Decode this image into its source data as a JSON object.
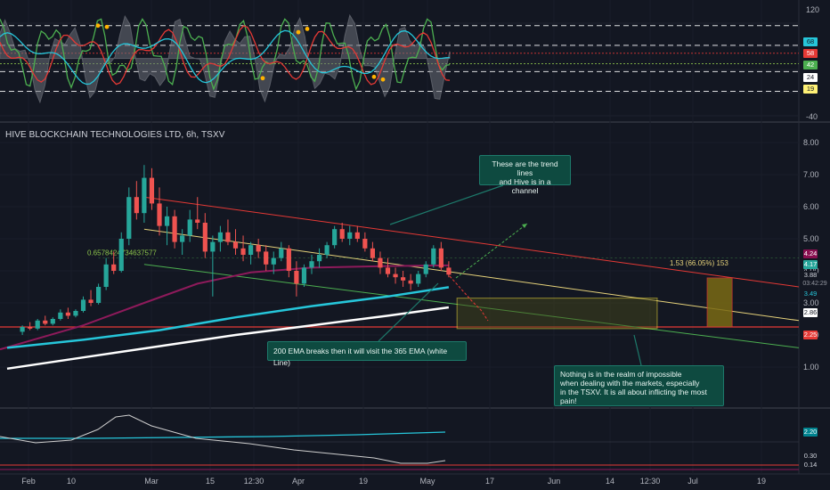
{
  "title": "HIVE BLOCKCHAIN TECHNOLOGIES LTD, 6h, TSXV",
  "price_axis": {
    "ticks": [
      "8.00",
      "7.00",
      "6.00",
      "5.00",
      "4.00",
      "3.00",
      "2.00",
      "1.00"
    ],
    "tags": [
      {
        "text": "4.24",
        "bg": "#880e4f",
        "fg": "#ffffff"
      },
      {
        "text": "4.17",
        "bg": "#26a69a",
        "fg": "#ffffff"
      },
      {
        "text": "3.88",
        "bg": "#131722",
        "fg": "#d1d4dc"
      },
      {
        "text": "03:42:29",
        "bg": "#131722",
        "fg": "#9598a1"
      },
      {
        "text": "3.49",
        "bg": "#131722",
        "fg": "#26c6da"
      },
      {
        "text": "2.86",
        "bg": "#ffffff",
        "fg": "#131722"
      },
      {
        "text": "2.25",
        "bg": "#e53935",
        "fg": "#ffffff"
      }
    ]
  },
  "rsi_axis": {
    "ticks": [
      "120",
      "-40"
    ],
    "tags": [
      {
        "text": "68",
        "bg": "#26c6da",
        "fg": "#131722"
      },
      {
        "text": "58",
        "bg": "#e53935",
        "fg": "#ffffff"
      },
      {
        "text": "42",
        "bg": "#4caf50",
        "fg": "#ffffff"
      },
      {
        "text": "24",
        "bg": "#ffffff",
        "fg": "#131722"
      },
      {
        "text": "19",
        "bg": "#fff176",
        "fg": "#131722"
      }
    ]
  },
  "macd_axis": {
    "tags": [
      {
        "text": "2.20",
        "bg": "#00838f",
        "fg": "#ffffff"
      },
      {
        "text": "0.30",
        "bg": "#131722",
        "fg": "#d1d4dc"
      },
      {
        "text": "0.14",
        "bg": "#131722",
        "fg": "#d1d4dc"
      }
    ]
  },
  "time_axis": [
    "Feb",
    "10",
    "Mar",
    "15",
    "12:30",
    "Apr",
    "19",
    "May",
    "17",
    "Jun",
    "14",
    "12:30",
    "Jul",
    "19"
  ],
  "annotations": {
    "fib_label": "0.6578424734637577",
    "projection_label": "1.53 (66.05%) 153",
    "note_trend": "These are the trend lines\nand Hive is in a channel",
    "note_ema": "200 EMA breaks then it will visit the 365 EMA (white Line)",
    "note_pain": "Nothing is in the realm of impossible\nwhen dealing with the markets, especially\nin the TSXV. It is all about inflicting the most pain!"
  },
  "colors": {
    "background": "#131722",
    "up_candle": "#26a69a",
    "down_candle": "#ef5350",
    "ema_cyan": "#26c6da",
    "ema_white": "#ffffff",
    "ema_purple": "#8e1a5b",
    "trend_red": "#e53935",
    "trend_yellow": "#e6d27a",
    "trend_green": "#4caf50"
  },
  "chart_data": {
    "type": "candlestick",
    "ylim": [
      0.5,
      8.0
    ],
    "x_range": [
      0,
      100
    ],
    "candles": [
      [
        2,
        2.1,
        2.3,
        2.0,
        2.25
      ],
      [
        3,
        2.25,
        2.4,
        2.15,
        2.2
      ],
      [
        4,
        2.2,
        2.5,
        2.15,
        2.45
      ],
      [
        5,
        2.45,
        2.6,
        2.3,
        2.35
      ],
      [
        6,
        2.35,
        2.55,
        2.3,
        2.5
      ],
      [
        7,
        2.5,
        2.8,
        2.45,
        2.7
      ],
      [
        8,
        2.7,
        2.85,
        2.5,
        2.6
      ],
      [
        9,
        2.6,
        2.8,
        2.55,
        2.75
      ],
      [
        10,
        2.75,
        3.2,
        2.7,
        3.1
      ],
      [
        11,
        3.1,
        3.4,
        2.9,
        3.0
      ],
      [
        12,
        3.0,
        3.6,
        2.95,
        3.5
      ],
      [
        13,
        3.5,
        4.4,
        3.4,
        4.2
      ],
      [
        14,
        4.2,
        4.6,
        3.9,
        4.0
      ],
      [
        15,
        4.0,
        5.2,
        3.95,
        5.0
      ],
      [
        16,
        5.0,
        6.6,
        4.8,
        6.3
      ],
      [
        17,
        6.3,
        6.8,
        5.6,
        5.8
      ],
      [
        18,
        5.8,
        7.3,
        5.5,
        6.9
      ],
      [
        19,
        6.9,
        7.2,
        5.9,
        6.1
      ],
      [
        20,
        6.1,
        6.6,
        5.1,
        5.4
      ],
      [
        21,
        5.4,
        6.0,
        4.8,
        5.7
      ],
      [
        22,
        5.7,
        5.9,
        4.7,
        4.9
      ],
      [
        23,
        4.9,
        5.3,
        4.5,
        5.1
      ],
      [
        24,
        5.1,
        5.9,
        4.9,
        5.6
      ],
      [
        25,
        5.6,
        6.3,
        5.3,
        5.5
      ],
      [
        26,
        5.5,
        5.8,
        4.4,
        4.6
      ],
      [
        27,
        4.6,
        5.1,
        3.2,
        4.9
      ],
      [
        28,
        4.9,
        5.4,
        4.6,
        5.2
      ],
      [
        29,
        5.2,
        5.6,
        4.8,
        4.9
      ],
      [
        30,
        4.9,
        5.3,
        4.5,
        4.7
      ],
      [
        31,
        4.7,
        5.1,
        4.3,
        4.5
      ],
      [
        32,
        4.5,
        4.9,
        4.2,
        4.8
      ],
      [
        33,
        4.8,
        5.0,
        4.4,
        4.6
      ],
      [
        34,
        4.6,
        4.8,
        4.0,
        4.2
      ],
      [
        35,
        4.2,
        4.6,
        3.9,
        4.4
      ],
      [
        36,
        4.4,
        4.9,
        4.3,
        4.7
      ],
      [
        37,
        4.7,
        4.8,
        3.8,
        4.0
      ],
      [
        38,
        4.0,
        4.3,
        3.2,
        3.6
      ],
      [
        39,
        3.6,
        4.2,
        3.5,
        4.1
      ],
      [
        40,
        4.1,
        4.5,
        3.9,
        4.3
      ],
      [
        41,
        4.3,
        4.7,
        4.1,
        4.5
      ],
      [
        42,
        4.5,
        4.9,
        4.4,
        4.8
      ],
      [
        43,
        4.8,
        5.4,
        4.7,
        5.3
      ],
      [
        44,
        5.3,
        5.5,
        4.9,
        5.0
      ],
      [
        45,
        5.0,
        5.4,
        4.8,
        5.2
      ],
      [
        46,
        5.2,
        5.4,
        4.9,
        5.0
      ],
      [
        47,
        5.0,
        5.2,
        4.6,
        4.7
      ],
      [
        48,
        4.7,
        4.9,
        4.3,
        4.4
      ],
      [
        49,
        4.4,
        4.6,
        3.9,
        4.1
      ],
      [
        50,
        4.1,
        4.4,
        3.8,
        3.9
      ],
      [
        51,
        3.9,
        4.1,
        3.6,
        3.8
      ],
      [
        52,
        3.8,
        4.0,
        3.5,
        3.7
      ],
      [
        53,
        3.7,
        3.9,
        3.4,
        3.6
      ],
      [
        54,
        3.6,
        4.0,
        3.5,
        3.9
      ],
      [
        55,
        3.9,
        4.3,
        3.8,
        4.2
      ],
      [
        56,
        4.2,
        4.8,
        4.1,
        4.7
      ],
      [
        57,
        4.7,
        4.9,
        4.0,
        4.1
      ],
      [
        58,
        4.1,
        4.3,
        3.8,
        3.88
      ]
    ],
    "ema_200": [
      [
        0,
        1.6
      ],
      [
        10,
        1.85
      ],
      [
        20,
        2.15
      ],
      [
        30,
        2.55
      ],
      [
        40,
        2.9
      ],
      [
        50,
        3.2
      ],
      [
        58,
        3.49
      ]
    ],
    "ema_365": [
      [
        0,
        0.95
      ],
      [
        10,
        1.3
      ],
      [
        20,
        1.65
      ],
      [
        30,
        2.0
      ],
      [
        40,
        2.3
      ],
      [
        50,
        2.6
      ],
      [
        58,
        2.86
      ]
    ],
    "ema_purple": [
      [
        10,
        2.3
      ],
      [
        18,
        3.0
      ],
      [
        25,
        3.6
      ],
      [
        32,
        3.95
      ],
      [
        40,
        4.1
      ],
      [
        50,
        4.15
      ],
      [
        58,
        4.17
      ]
    ],
    "support_line": 2.25,
    "trend_red": [
      [
        18,
        6.3
      ],
      [
        100,
        3.5
      ]
    ],
    "trend_yellow": [
      [
        18,
        5.3
      ],
      [
        100,
        2.45
      ]
    ],
    "trend_green": [
      [
        18,
        4.2
      ],
      [
        100,
        1.6
      ]
    ],
    "target_zone": {
      "x": [
        59,
        83
      ],
      "y": [
        2.2,
        3.15
      ]
    },
    "projection_bar": {
      "x": [
        89,
        92
      ],
      "y": [
        2.25,
        3.78
      ]
    }
  }
}
